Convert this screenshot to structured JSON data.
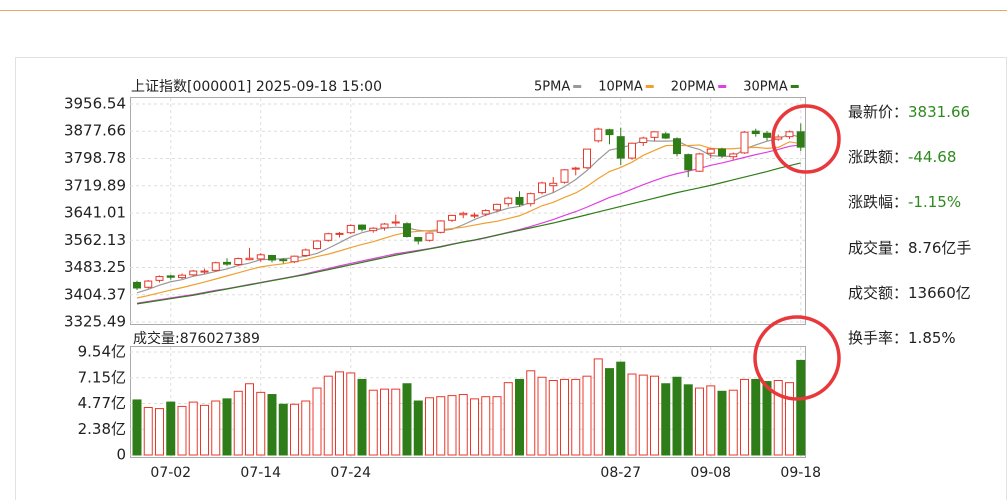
{
  "chart_data": [
    {
      "type": "candlestick",
      "title": "上证指数[000001] 2025-09-18 15:00",
      "up_color": "#e8382b",
      "down_color": "#2f7d18",
      "ylim": [
        3325.49,
        3956.54
      ],
      "yticks": [
        3325.49,
        3404.37,
        3483.25,
        3562.13,
        3641.01,
        3719.89,
        3798.78,
        3877.66,
        3956.54
      ],
      "grid": true,
      "ohlc": [
        [
          3440,
          3445,
          3418,
          3424
        ],
        [
          3426,
          3447,
          3422,
          3444
        ],
        [
          3446,
          3460,
          3440,
          3457
        ],
        [
          3459,
          3462,
          3448,
          3455
        ],
        [
          3454,
          3466,
          3450,
          3461
        ],
        [
          3462,
          3476,
          3458,
          3473
        ],
        [
          3470,
          3480,
          3465,
          3473
        ],
        [
          3475,
          3500,
          3472,
          3497
        ],
        [
          3498,
          3510,
          3488,
          3493
        ],
        [
          3492,
          3512,
          3488,
          3509
        ],
        [
          3506,
          3540,
          3504,
          3510
        ],
        [
          3508,
          3525,
          3500,
          3520
        ],
        [
          3518,
          3520,
          3498,
          3505
        ],
        [
          3506,
          3510,
          3495,
          3503
        ],
        [
          3500,
          3518,
          3496,
          3516
        ],
        [
          3518,
          3538,
          3514,
          3534
        ],
        [
          3538,
          3562,
          3535,
          3560
        ],
        [
          3562,
          3584,
          3558,
          3581
        ],
        [
          3580,
          3586,
          3570,
          3582
        ],
        [
          3584,
          3608,
          3580,
          3605
        ],
        [
          3606,
          3608,
          3588,
          3594
        ],
        [
          3590,
          3600,
          3584,
          3597
        ],
        [
          3598,
          3612,
          3590,
          3609
        ],
        [
          3612,
          3636,
          3604,
          3615
        ],
        [
          3610,
          3614,
          3570,
          3573
        ],
        [
          3570,
          3572,
          3550,
          3560
        ],
        [
          3562,
          3585,
          3558,
          3583
        ],
        [
          3585,
          3620,
          3582,
          3618
        ],
        [
          3620,
          3636,
          3615,
          3634
        ],
        [
          3636,
          3645,
          3626,
          3640
        ],
        [
          3632,
          3642,
          3626,
          3635
        ],
        [
          3638,
          3652,
          3632,
          3648
        ],
        [
          3650,
          3668,
          3645,
          3666
        ],
        [
          3668,
          3688,
          3660,
          3684
        ],
        [
          3686,
          3704,
          3660,
          3666
        ],
        [
          3668,
          3700,
          3660,
          3697
        ],
        [
          3700,
          3732,
          3695,
          3728
        ],
        [
          3720,
          3745,
          3700,
          3727
        ],
        [
          3730,
          3768,
          3726,
          3766
        ],
        [
          3768,
          3775,
          3750,
          3771
        ],
        [
          3772,
          3826,
          3768,
          3826
        ],
        [
          3850,
          3888,
          3845,
          3884
        ],
        [
          3882,
          3885,
          3840,
          3868
        ],
        [
          3862,
          3888,
          3780,
          3800
        ],
        [
          3800,
          3845,
          3795,
          3843
        ],
        [
          3845,
          3862,
          3835,
          3858
        ],
        [
          3860,
          3876,
          3850,
          3876
        ],
        [
          3870,
          3875,
          3855,
          3858
        ],
        [
          3856,
          3860,
          3805,
          3813
        ],
        [
          3810,
          3813,
          3745,
          3766
        ],
        [
          3762,
          3815,
          3760,
          3812
        ],
        [
          3814,
          3828,
          3800,
          3826
        ],
        [
          3826,
          3830,
          3800,
          3807
        ],
        [
          3804,
          3816,
          3795,
          3812
        ],
        [
          3815,
          3878,
          3812,
          3875
        ],
        [
          3878,
          3885,
          3862,
          3871
        ],
        [
          3872,
          3878,
          3850,
          3860
        ],
        [
          3855,
          3868,
          3850,
          3861
        ],
        [
          3862,
          3880,
          3855,
          3876
        ],
        [
          3876,
          3900,
          3820,
          3831.66
        ]
      ],
      "series": [
        {
          "name": "5PMA",
          "color": "#999999",
          "values": [
            3410,
            3420,
            3432,
            3442,
            3448,
            3458,
            3464,
            3472,
            3479,
            3489,
            3496,
            3506,
            3507,
            3509,
            3511,
            3516,
            3524,
            3539,
            3555,
            3572,
            3584,
            3592,
            3597,
            3600,
            3598,
            3591,
            3588,
            3590,
            3594,
            3607,
            3622,
            3635,
            3645,
            3655,
            3660,
            3672,
            3688,
            3700,
            3717,
            3738,
            3764,
            3795,
            3823,
            3830,
            3838,
            3851,
            3849,
            3849,
            3850,
            3834,
            3825,
            3807,
            3805,
            3805,
            3826,
            3838,
            3849,
            3856,
            3869,
            3860
          ]
        },
        {
          "name": "10PMA",
          "color": "#f0a030",
          "values": [
            3395,
            3402,
            3410,
            3418,
            3425,
            3433,
            3441,
            3450,
            3459,
            3468,
            3477,
            3485,
            3490,
            3494,
            3500,
            3506,
            3515,
            3522,
            3531,
            3541,
            3550,
            3558,
            3568,
            3578,
            3585,
            3588,
            3590,
            3593,
            3596,
            3600,
            3606,
            3612,
            3617,
            3625,
            3633,
            3647,
            3662,
            3672,
            3686,
            3699,
            3718,
            3741,
            3761,
            3773,
            3788,
            3808,
            3822,
            3836,
            3837,
            3836,
            3838,
            3828,
            3827,
            3827,
            3830,
            3831,
            3828,
            3831,
            3847,
            3842
          ]
        },
        {
          "name": "20PMA",
          "color": "#e040e0",
          "values": [
            3380,
            3385,
            3390,
            3395,
            3400,
            3405,
            3411,
            3417,
            3422,
            3428,
            3434,
            3440,
            3446,
            3452,
            3458,
            3465,
            3473,
            3480,
            3488,
            3495,
            3502,
            3509,
            3516,
            3523,
            3528,
            3533,
            3538,
            3544,
            3551,
            3557,
            3562,
            3569,
            3577,
            3585,
            3593,
            3602,
            3612,
            3622,
            3634,
            3645,
            3658,
            3672,
            3686,
            3697,
            3710,
            3723,
            3735,
            3746,
            3755,
            3762,
            3770,
            3779,
            3786,
            3794,
            3802,
            3810,
            3817,
            3825,
            3834,
            3838
          ]
        },
        {
          "name": "30PMA",
          "color": "#2f7d18",
          "values": [
            3378,
            3383,
            3388,
            3393,
            3398,
            3403,
            3409,
            3415,
            3421,
            3427,
            3433,
            3439,
            3445,
            3451,
            3457,
            3463,
            3470,
            3477,
            3484,
            3491,
            3498,
            3505,
            3512,
            3519,
            3525,
            3531,
            3537,
            3543,
            3550,
            3557,
            3563,
            3570,
            3577,
            3584,
            3591,
            3598,
            3605,
            3612,
            3620,
            3628,
            3636,
            3644,
            3652,
            3660,
            3668,
            3676,
            3684,
            3692,
            3700,
            3707,
            3714,
            3721,
            3729,
            3737,
            3745,
            3753,
            3761,
            3770,
            3778,
            3786
          ]
        }
      ]
    },
    {
      "type": "bar",
      "title": "成交量:876027389",
      "ylim": [
        0,
        9.54
      ],
      "yticks": [
        0,
        {
          "value": 2.38,
          "label": "2.38亿"
        },
        {
          "value": 4.77,
          "label": "4.77亿"
        },
        {
          "value": 7.15,
          "label": "7.15亿"
        },
        {
          "value": 9.54,
          "label": "9.54亿"
        }
      ],
      "grid": true,
      "categories": [
        null,
        null,
        null,
        "07-02",
        null,
        null,
        null,
        null,
        null,
        null,
        null,
        "07-14",
        null,
        null,
        null,
        null,
        null,
        null,
        null,
        "07-24",
        null,
        null,
        null,
        null,
        null,
        null,
        null,
        null,
        null,
        null,
        null,
        null,
        null,
        null,
        null,
        null,
        null,
        null,
        null,
        null,
        null,
        null,
        null,
        "08-27",
        null,
        null,
        null,
        null,
        null,
        null,
        null,
        "09-08",
        null,
        null,
        null,
        null,
        null,
        null,
        null,
        "09-18"
      ],
      "values": [
        5.1,
        4.4,
        4.3,
        4.9,
        4.5,
        4.9,
        4.6,
        5.0,
        5.2,
        5.9,
        6.6,
        5.8,
        5.6,
        4.7,
        4.7,
        5.0,
        6.2,
        7.3,
        7.7,
        7.6,
        7.0,
        6.0,
        6.1,
        6.1,
        6.6,
        5.0,
        5.3,
        5.4,
        5.5,
        5.6,
        5.2,
        5.4,
        5.4,
        6.7,
        7.0,
        7.8,
        7.2,
        6.9,
        7.0,
        7.0,
        7.3,
        8.9,
        8.0,
        8.6,
        7.5,
        7.4,
        7.3,
        6.6,
        7.2,
        6.5,
        6.2,
        6.4,
        5.9,
        6.0,
        7.0,
        7.0,
        6.8,
        6.9,
        6.7,
        8.76
      ]
    }
  ],
  "quote": [
    {
      "label": "最新价：",
      "value": "3831.66",
      "color": "#2f8a1e"
    },
    {
      "label": "涨跌额：",
      "value": "-44.68",
      "color": "#2f8a1e"
    },
    {
      "label": "涨跌幅：",
      "value": "-1.15%",
      "color": "#2f8a1e"
    },
    {
      "label": "成交量：",
      "value": "8.76亿手",
      "color": "#222222"
    },
    {
      "label": "成交额：",
      "value": "13660亿",
      "color": "#222222"
    },
    {
      "label": "换手率：",
      "value": "1.85%",
      "color": "#222222"
    }
  ]
}
